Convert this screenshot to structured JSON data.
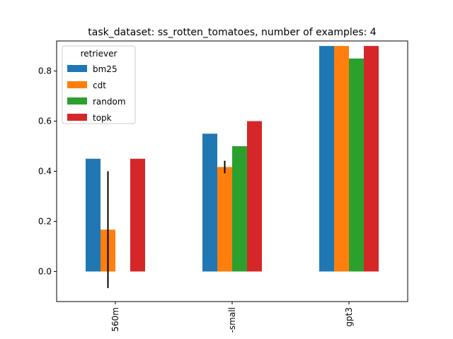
{
  "chart_data": {
    "type": "bar",
    "title": "task_dataset: ss_rotten_tomatoes, number of examples: 4",
    "xlabel": "",
    "ylabel": "",
    "categories": [
      "560m",
      "-small",
      "gpt3"
    ],
    "ylim": [
      -0.12,
      0.92
    ],
    "yticks": [
      "0.0",
      "0.2",
      "0.4",
      "0.6",
      "0.8"
    ],
    "ytick_values": [
      0.0,
      0.2,
      0.4,
      0.6,
      0.8
    ],
    "grid": false,
    "legend": {
      "title": "retriever",
      "placement": "top-left"
    },
    "series": [
      {
        "name": "bm25",
        "color": "#1f77b4",
        "values": [
          0.45,
          0.55,
          0.9
        ],
        "errors": [
          null,
          null,
          null
        ]
      },
      {
        "name": "cdt",
        "color": "#ff7f0e",
        "values": [
          0.167,
          0.417,
          0.9
        ],
        "errors": [
          0.233,
          0.025,
          null
        ]
      },
      {
        "name": "random",
        "color": "#2ca02c",
        "values": [
          0.0,
          0.5,
          0.85
        ],
        "errors": [
          null,
          null,
          null
        ]
      },
      {
        "name": "topk",
        "color": "#d62728",
        "values": [
          0.45,
          0.6,
          0.9
        ],
        "errors": [
          null,
          null,
          null
        ]
      }
    ]
  }
}
